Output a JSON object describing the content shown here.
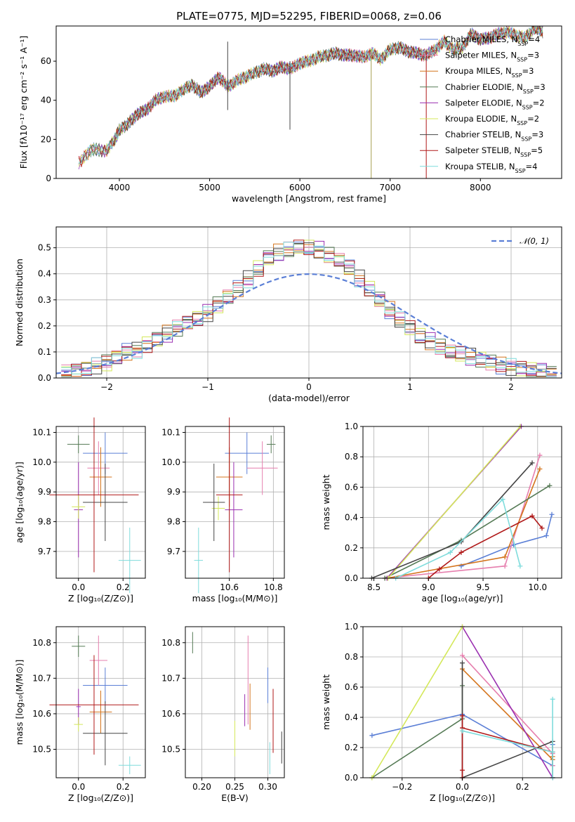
{
  "models": [
    {
      "name": "Chabrier MILES",
      "n": "4",
      "color": "#5b7fd6"
    },
    {
      "name": "Salpeter MILES",
      "n": "3",
      "color": "#e67fae"
    },
    {
      "name": "Kroupa MILES",
      "n": "3",
      "color": "#d4741c"
    },
    {
      "name": "Chabrier ELODIE",
      "n": "3",
      "color": "#557a55"
    },
    {
      "name": "Salpeter ELODIE",
      "n": "2",
      "color": "#9a2fb0"
    },
    {
      "name": "Kroupa ELODIE",
      "n": "2",
      "color": "#d4e85a"
    },
    {
      "name": "Chabrier STELIB",
      "n": "3",
      "color": "#444444"
    },
    {
      "name": "Salpeter STELIB",
      "n": "5",
      "color": "#b01818"
    },
    {
      "name": "Kroupa STELIB",
      "n": "4",
      "color": "#7fdcdc"
    }
  ],
  "chart_data": [
    {
      "type": "line",
      "title": "PLATE=0775, MJD=52295, FIBERID=0068, z=0.06",
      "xlabel": "wavelength [Angstrom, rest frame]",
      "ylabel": "Flux [fλ10⁻¹⁷ erg cm⁻² s⁻¹ A⁻¹]",
      "xlim": [
        3300,
        8900
      ],
      "ylim": [
        0,
        78
      ],
      "xticks": [
        "4000",
        "5000",
        "6000",
        "7000",
        "8000"
      ],
      "yticks": [
        "0",
        "20",
        "40",
        "60"
      ],
      "grid": false,
      "legend": "right",
      "x": [
        3550,
        3700,
        3850,
        3950,
        4000,
        4100,
        4200,
        4300,
        4400,
        4500,
        4600,
        4700,
        4800,
        4900,
        5000,
        5100,
        5200,
        5300,
        5400,
        5500,
        5600,
        5700,
        5800,
        5900,
        6000,
        6100,
        6200,
        6300,
        6400,
        6500,
        6600,
        6700,
        6800,
        6900,
        7000,
        7100,
        7200,
        7300,
        7400,
        7500,
        7600,
        7700,
        7800,
        7900,
        8000,
        8100,
        8200,
        8300,
        8400,
        8500,
        8600,
        8700
      ],
      "y": [
        8,
        15,
        14,
        20,
        25,
        28,
        33,
        35,
        40,
        42,
        42,
        45,
        48,
        44,
        47,
        52,
        47,
        50,
        52,
        54,
        56,
        55,
        57,
        56,
        59,
        60,
        62,
        63,
        64,
        63,
        63,
        62,
        64,
        61,
        66,
        67,
        65,
        64,
        63,
        66,
        70,
        66,
        67,
        74,
        71,
        72,
        74,
        75,
        73,
        72,
        77,
        75
      ]
    },
    {
      "type": "bar",
      "xlabel": "(data-model)/error",
      "ylabel": "Normed distribution",
      "xlim": [
        -2.5,
        2.5
      ],
      "ylim": [
        0,
        0.58
      ],
      "xticks": [
        "−2",
        "−1",
        "0",
        "1",
        "2"
      ],
      "yticks": [
        "0.0",
        "0.1",
        "0.2",
        "0.3",
        "0.4",
        "0.5"
      ],
      "grid": true,
      "legend": "top-right",
      "legend_label": "𝒩(0, 1)",
      "bin_centers": [
        -2.4,
        -2.3,
        -2.2,
        -2.1,
        -2.0,
        -1.9,
        -1.8,
        -1.7,
        -1.6,
        -1.5,
        -1.4,
        -1.3,
        -1.2,
        -1.1,
        -1.0,
        -0.9,
        -0.8,
        -0.7,
        -0.6,
        -0.5,
        -0.4,
        -0.3,
        -0.2,
        -0.1,
        0.0,
        0.1,
        0.2,
        0.3,
        0.4,
        0.5,
        0.6,
        0.7,
        0.8,
        0.9,
        1.0,
        1.1,
        1.2,
        1.3,
        1.4,
        1.5,
        1.6,
        1.7,
        1.8,
        1.9,
        2.0,
        2.1,
        2.2,
        2.3,
        2.4
      ],
      "values": [
        0.02,
        0.03,
        0.04,
        0.05,
        0.06,
        0.08,
        0.1,
        0.11,
        0.13,
        0.15,
        0.17,
        0.19,
        0.21,
        0.23,
        0.25,
        0.28,
        0.31,
        0.34,
        0.38,
        0.42,
        0.46,
        0.48,
        0.49,
        0.5,
        0.5,
        0.49,
        0.47,
        0.45,
        0.42,
        0.38,
        0.34,
        0.3,
        0.26,
        0.22,
        0.19,
        0.16,
        0.14,
        0.12,
        0.1,
        0.09,
        0.08,
        0.07,
        0.06,
        0.05,
        0.04,
        0.035,
        0.03,
        0.025,
        0.02
      ]
    },
    {
      "type": "scatter",
      "xlabel": "Z [log₁₀(Z/Z⊙)]",
      "ylabel": "age  [log₁₀(age/yr)]",
      "xlim": [
        -0.1,
        0.3
      ],
      "ylim": [
        9.61,
        10.12
      ],
      "xticks": [
        "0.0",
        "0.2"
      ],
      "yticks": [
        "9.7",
        "9.8",
        "9.9",
        "10.0",
        "10.1"
      ],
      "points": [
        {
          "x": 0.12,
          "y": 10.03,
          "xerr": 0.1,
          "yerr": 0.07
        },
        {
          "x": 0.09,
          "y": 9.98,
          "xerr": 0.05,
          "yerr": 0.09
        },
        {
          "x": 0.1,
          "y": 9.95,
          "xerr": 0.05,
          "yerr": 0.1
        },
        {
          "x": 0.0,
          "y": 10.06,
          "xerr": 0.05,
          "yerr": 0.03
        },
        {
          "x": 0.0,
          "y": 9.84,
          "xerr": 0.02,
          "yerr": 0.16
        },
        {
          "x": 0.0,
          "y": 9.85,
          "xerr": 0.03,
          "yerr": 0.04
        },
        {
          "x": 0.12,
          "y": 9.865,
          "xerr": 0.1,
          "yerr": 0.13
        },
        {
          "x": 0.07,
          "y": 9.89,
          "xerr": 0.2,
          "yerr": 0.26
        },
        {
          "x": 0.23,
          "y": 9.67,
          "xerr": 0.05,
          "yerr": 0.11
        }
      ]
    },
    {
      "type": "scatter",
      "xlabel": "mass [log₁₀(M/M⊙)]",
      "ylabel": "",
      "xlim": [
        10.4,
        10.85
      ],
      "ylim": [
        9.61,
        10.12
      ],
      "xticks": [
        "10.6",
        "10.8"
      ],
      "yticks": [
        "9.7",
        "9.8",
        "9.9",
        "10.0",
        "10.1"
      ],
      "points": [
        {
          "x": 10.68,
          "y": 10.03,
          "xerr": 0.1,
          "yerr": 0.07
        },
        {
          "x": 10.75,
          "y": 9.98,
          "xerr": 0.07,
          "yerr": 0.09
        },
        {
          "x": 10.6,
          "y": 9.95,
          "xerr": 0.06,
          "yerr": 0.1
        },
        {
          "x": 10.79,
          "y": 10.06,
          "xerr": 0.02,
          "yerr": 0.03
        },
        {
          "x": 10.62,
          "y": 9.84,
          "xerr": 0.04,
          "yerr": 0.16
        },
        {
          "x": 10.55,
          "y": 9.845,
          "xerr": 0.03,
          "yerr": 0.04
        },
        {
          "x": 10.53,
          "y": 9.865,
          "xerr": 0.05,
          "yerr": 0.13
        },
        {
          "x": 10.6,
          "y": 9.89,
          "xerr": 0.06,
          "yerr": 0.26
        },
        {
          "x": 10.46,
          "y": 9.67,
          "xerr": 0.02,
          "yerr": 0.11
        }
      ]
    },
    {
      "type": "line",
      "xlabel": "age  [log₁₀(age/yr)]",
      "ylabel": "mass weight",
      "xlim": [
        8.4,
        10.22
      ],
      "ylim": [
        0,
        1
      ],
      "xticks": [
        "8.5",
        "9.0",
        "9.5",
        "10.0"
      ],
      "yticks": [
        "0.0",
        "0.2",
        "0.4",
        "0.6",
        "0.8",
        "1.0"
      ],
      "grid": true,
      "series": [
        {
          "x": [
            9.3,
            9.78,
            10.08,
            10.13
          ],
          "y": [
            0.08,
            0.22,
            0.28,
            0.42
          ]
        },
        {
          "x": [
            8.6,
            9.7,
            10.02
          ],
          "y": [
            0.0,
            0.08,
            0.81
          ]
        },
        {
          "x": [
            8.62,
            9.7,
            10.02
          ],
          "y": [
            0.0,
            0.14,
            0.72
          ]
        },
        {
          "x": [
            8.6,
            9.3,
            10.11
          ],
          "y": [
            0.0,
            0.25,
            0.61
          ]
        },
        {
          "x": [
            8.62,
            9.85
          ],
          "y": [
            0.0,
            1.0
          ]
        },
        {
          "x": [
            8.63,
            9.84
          ],
          "y": [
            0.0,
            1.0
          ]
        },
        {
          "x": [
            8.48,
            9.3,
            9.95
          ],
          "y": [
            0.0,
            0.24,
            0.76
          ]
        },
        {
          "x": [
            9.0,
            9.1,
            9.3,
            9.95,
            10.04
          ],
          "y": [
            0.0,
            0.06,
            0.17,
            0.41,
            0.33
          ]
        },
        {
          "x": [
            8.7,
            9.2,
            9.68,
            9.84
          ],
          "y": [
            0.0,
            0.17,
            0.52,
            0.08
          ]
        }
      ]
    },
    {
      "type": "scatter",
      "xlabel": "Z [log₁₀(Z/Z⊙)]",
      "ylabel": "mass [log₁₀(M/M⊙)]",
      "xlim": [
        -0.1,
        0.3
      ],
      "ylim": [
        10.42,
        10.845
      ],
      "xticks": [
        "0.0",
        "0.2"
      ],
      "yticks": [
        "10.5",
        "10.6",
        "10.7",
        "10.8"
      ],
      "points": [
        {
          "x": 0.12,
          "y": 10.68,
          "xerr": 0.1,
          "yerr": 0.05
        },
        {
          "x": 0.09,
          "y": 10.75,
          "xerr": 0.04,
          "yerr": 0.07
        },
        {
          "x": 0.1,
          "y": 10.605,
          "xerr": 0.05,
          "yerr": 0.06
        },
        {
          "x": 0.0,
          "y": 10.79,
          "xerr": 0.03,
          "yerr": 0.03
        },
        {
          "x": 0.0,
          "y": 10.62,
          "xerr": 0.01,
          "yerr": 0.05
        },
        {
          "x": 0.0,
          "y": 10.57,
          "xerr": 0.02,
          "yerr": 0.02
        },
        {
          "x": 0.12,
          "y": 10.545,
          "xerr": 0.1,
          "yerr": 0.09
        },
        {
          "x": 0.07,
          "y": 10.625,
          "xerr": 0.2,
          "yerr": 0.14
        },
        {
          "x": 0.23,
          "y": 10.455,
          "xerr": 0.05,
          "yerr": 0.025
        }
      ]
    },
    {
      "type": "scatter",
      "xlabel": "E(B-V)",
      "ylabel": "",
      "xlim": [
        0.175,
        0.325
      ],
      "ylim": [
        10.42,
        10.845
      ],
      "xticks": [
        "0.20",
        "0.25",
        "0.30"
      ],
      "yticks": [
        "10.5",
        "10.6",
        "10.7",
        "10.8"
      ],
      "points": [
        {
          "x": 0.3,
          "y": 10.68,
          "xerr": 0,
          "yerr": 0.05
        },
        {
          "x": 0.27,
          "y": 10.695,
          "xerr": 0,
          "yerr": 0.125
        },
        {
          "x": 0.273,
          "y": 10.62,
          "xerr": 0,
          "yerr": 0.065
        },
        {
          "x": 0.186,
          "y": 10.8,
          "xerr": 0,
          "yerr": 0.03
        },
        {
          "x": 0.265,
          "y": 10.61,
          "xerr": 0,
          "yerr": 0.045
        },
        {
          "x": 0.25,
          "y": 10.53,
          "xerr": 0,
          "yerr": 0.05
        },
        {
          "x": 0.321,
          "y": 10.505,
          "xerr": 0,
          "yerr": 0.045
        },
        {
          "x": 0.308,
          "y": 10.58,
          "xerr": 0,
          "yerr": 0.09
        },
        {
          "x": 0.303,
          "y": 10.475,
          "xerr": 0,
          "yerr": 0.045
        }
      ]
    },
    {
      "type": "line",
      "xlabel": "Z [log₁₀(Z/Z⊙)]",
      "ylabel": "mass weight",
      "xlim": [
        -0.33,
        0.33
      ],
      "ylim": [
        0,
        1
      ],
      "xticks": [
        "−0.2",
        "0.0",
        "0.2"
      ],
      "yticks": [
        "0.0",
        "0.2",
        "0.4",
        "0.6",
        "0.8",
        "1.0"
      ],
      "grid": true,
      "series": [
        {
          "x": [
            -0.3,
            0.0,
            0.3,
            0.3
          ],
          "y": [
            0.28,
            0.42,
            0.08,
            0.22
          ]
        },
        {
          "x": [
            0.0,
            0.3,
            0.3
          ],
          "y": [
            0.81,
            0.16,
            0.08
          ]
        },
        {
          "x": [
            0.0,
            0.3,
            0.3
          ],
          "y": [
            0.72,
            0.12,
            0.14
          ]
        },
        {
          "x": [
            -0.3,
            0.0,
            0.0
          ],
          "y": [
            0.0,
            0.39,
            0.61
          ]
        },
        {
          "x": [
            0.0,
            0.3
          ],
          "y": [
            1.0,
            0.0
          ]
        },
        {
          "x": [
            -0.3,
            0.0
          ],
          "y": [
            0.0,
            1.0
          ]
        },
        {
          "x": [
            0.0,
            0.0,
            0.3,
            0.3
          ],
          "y": [
            0.76,
            0.0,
            0.24,
            0.0
          ]
        },
        {
          "x": [
            0.0,
            0.0,
            0.0,
            0.0,
            0.3
          ],
          "y": [
            0.41,
            0.0,
            0.05,
            0.33,
            0.17
          ]
        },
        {
          "x": [
            0.0,
            0.3,
            0.3,
            0.3
          ],
          "y": [
            0.31,
            0.17,
            0.52,
            0.0
          ]
        }
      ]
    }
  ]
}
